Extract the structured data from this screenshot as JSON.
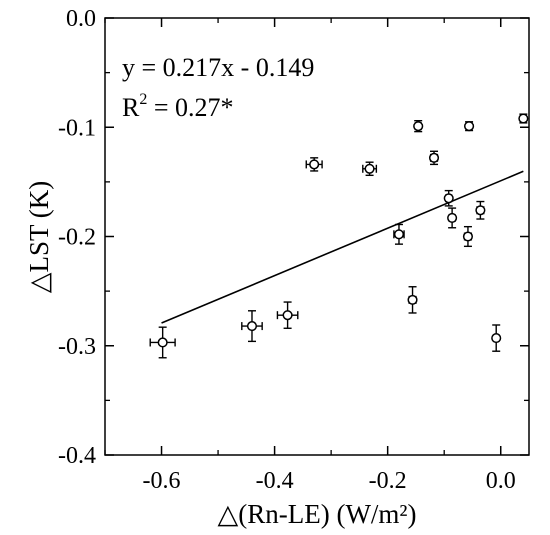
{
  "chart_data": {
    "type": "scatter",
    "title": "",
    "xlabel": "△(Rn-LE) (W/m²)",
    "ylabel": "△LST (K)",
    "xlim": [
      -0.7,
      0.05
    ],
    "ylim": [
      -0.4,
      0.0
    ],
    "xticks": [
      -0.6,
      -0.4,
      -0.2,
      0.0
    ],
    "xtick_labels": [
      "-0.6",
      "-0.4",
      "-0.2",
      "0.0"
    ],
    "yticks": [
      -0.4,
      -0.3,
      -0.2,
      -0.1,
      0.0
    ],
    "ytick_labels": [
      "-0.4",
      "-0.3",
      "-0.2",
      "-0.1",
      "0.0"
    ],
    "grid": false,
    "annotations": {
      "equation": "y = 0.217x - 0.149",
      "r2_prefix": "R",
      "r2_sup": "2",
      "r2_value": " = 0.27*"
    },
    "fit_line": {
      "slope": 0.217,
      "intercept": -0.149,
      "x_range": [
        -0.6,
        0.04
      ]
    },
    "points": [
      {
        "x": -0.598,
        "y": -0.297,
        "xerr": 0.022,
        "yerr": 0.014
      },
      {
        "x": -0.44,
        "y": -0.282,
        "xerr": 0.018,
        "yerr": 0.014
      },
      {
        "x": -0.377,
        "y": -0.272,
        "xerr": 0.018,
        "yerr": 0.012
      },
      {
        "x": -0.33,
        "y": -0.134,
        "xerr": 0.014,
        "yerr": 0.006
      },
      {
        "x": -0.232,
        "y": -0.138,
        "xerr": 0.012,
        "yerr": 0.006
      },
      {
        "x": -0.18,
        "y": -0.198,
        "xerr": 0.009,
        "yerr": 0.009
      },
      {
        "x": -0.156,
        "y": -0.258,
        "xerr": 0.006,
        "yerr": 0.012
      },
      {
        "x": -0.146,
        "y": -0.099,
        "xerr": 0.005,
        "yerr": 0.005
      },
      {
        "x": -0.118,
        "y": -0.128,
        "xerr": 0.006,
        "yerr": 0.006
      },
      {
        "x": -0.092,
        "y": -0.165,
        "xerr": 0.005,
        "yerr": 0.007
      },
      {
        "x": -0.086,
        "y": -0.183,
        "xerr": 0.005,
        "yerr": 0.009
      },
      {
        "x": -0.058,
        "y": -0.2,
        "xerr": 0.006,
        "yerr": 0.009
      },
      {
        "x": -0.056,
        "y": -0.099,
        "xerr": 0.005,
        "yerr": 0.004
      },
      {
        "x": -0.036,
        "y": -0.176,
        "xerr": 0.006,
        "yerr": 0.008
      },
      {
        "x": -0.008,
        "y": -0.293,
        "xerr": 0.004,
        "yerr": 0.012
      },
      {
        "x": 0.04,
        "y": -0.092,
        "xerr": 0.004,
        "yerr": 0.004
      }
    ]
  }
}
